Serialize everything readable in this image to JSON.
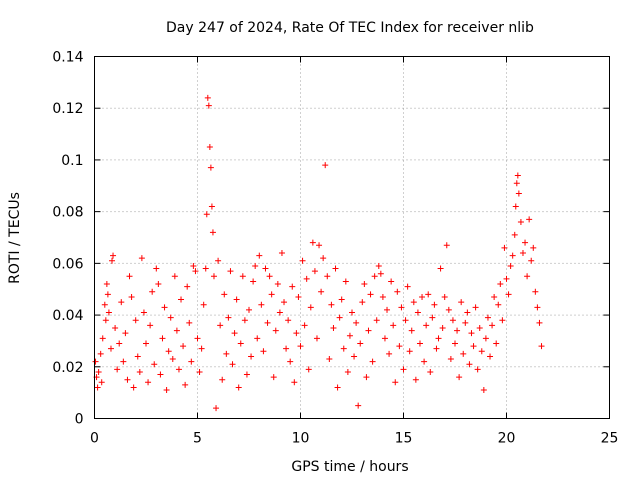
{
  "chart_data": {
    "type": "scatter",
    "title": "Day 247 of 2024, Rate Of TEC Index for receiver nlib",
    "xlabel": "GPS time / hours",
    "ylabel": "ROTI / TECUs",
    "xlim": [
      0,
      25
    ],
    "ylim": [
      0,
      0.14
    ],
    "xticks": [
      0,
      5,
      10,
      15,
      20,
      25
    ],
    "xtick_labels": [
      "0",
      "5",
      "10",
      "15",
      "20",
      "25"
    ],
    "yticks": [
      0,
      0.02,
      0.04,
      0.06,
      0.08,
      0.1,
      0.12,
      0.14
    ],
    "ytick_labels": [
      "0",
      "0.02",
      "0.04",
      "0.06",
      "0.08",
      "0.1",
      "0.12",
      "0.14"
    ],
    "grid": true,
    "marker": "plus",
    "color": "#ff0000",
    "points": [
      [
        0.05,
        0.022
      ],
      [
        0.1,
        0.016
      ],
      [
        0.15,
        0.012
      ],
      [
        0.2,
        0.018
      ],
      [
        0.3,
        0.025
      ],
      [
        0.35,
        0.014
      ],
      [
        0.4,
        0.031
      ],
      [
        0.5,
        0.044
      ],
      [
        0.55,
        0.038
      ],
      [
        0.6,
        0.052
      ],
      [
        0.65,
        0.048
      ],
      [
        0.7,
        0.041
      ],
      [
        0.8,
        0.027
      ],
      [
        0.85,
        0.061
      ],
      [
        0.9,
        0.063
      ],
      [
        1.0,
        0.035
      ],
      [
        1.1,
        0.019
      ],
      [
        1.2,
        0.029
      ],
      [
        1.3,
        0.045
      ],
      [
        1.4,
        0.022
      ],
      [
        1.5,
        0.033
      ],
      [
        1.6,
        0.015
      ],
      [
        1.7,
        0.055
      ],
      [
        1.8,
        0.047
      ],
      [
        1.9,
        0.012
      ],
      [
        2.0,
        0.038
      ],
      [
        2.1,
        0.024
      ],
      [
        2.2,
        0.018
      ],
      [
        2.3,
        0.062
      ],
      [
        2.4,
        0.041
      ],
      [
        2.5,
        0.029
      ],
      [
        2.6,
        0.014
      ],
      [
        2.7,
        0.036
      ],
      [
        2.8,
        0.049
      ],
      [
        2.9,
        0.021
      ],
      [
        3.0,
        0.058
      ],
      [
        3.1,
        0.052
      ],
      [
        3.2,
        0.017
      ],
      [
        3.3,
        0.031
      ],
      [
        3.4,
        0.043
      ],
      [
        3.5,
        0.011
      ],
      [
        3.6,
        0.026
      ],
      [
        3.7,
        0.039
      ],
      [
        3.8,
        0.023
      ],
      [
        3.9,
        0.055
      ],
      [
        4.0,
        0.034
      ],
      [
        4.1,
        0.019
      ],
      [
        4.2,
        0.046
      ],
      [
        4.3,
        0.028
      ],
      [
        4.4,
        0.013
      ],
      [
        4.5,
        0.051
      ],
      [
        4.6,
        0.037
      ],
      [
        4.7,
        0.022
      ],
      [
        4.8,
        0.059
      ],
      [
        4.9,
        0.057
      ],
      [
        5.0,
        0.031
      ],
      [
        5.1,
        0.018
      ],
      [
        5.2,
        0.027
      ],
      [
        5.3,
        0.044
      ],
      [
        5.4,
        0.058
      ],
      [
        5.45,
        0.079
      ],
      [
        5.5,
        0.124
      ],
      [
        5.55,
        0.121
      ],
      [
        5.6,
        0.105
      ],
      [
        5.65,
        0.097
      ],
      [
        5.7,
        0.082
      ],
      [
        5.75,
        0.072
      ],
      [
        5.8,
        0.055
      ],
      [
        5.9,
        0.004
      ],
      [
        6.0,
        0.061
      ],
      [
        6.1,
        0.036
      ],
      [
        6.2,
        0.015
      ],
      [
        6.3,
        0.048
      ],
      [
        6.4,
        0.025
      ],
      [
        6.5,
        0.039
      ],
      [
        6.6,
        0.057
      ],
      [
        6.7,
        0.021
      ],
      [
        6.8,
        0.033
      ],
      [
        6.9,
        0.046
      ],
      [
        7.0,
        0.012
      ],
      [
        7.1,
        0.029
      ],
      [
        7.2,
        0.055
      ],
      [
        7.3,
        0.038
      ],
      [
        7.4,
        0.017
      ],
      [
        7.5,
        0.042
      ],
      [
        7.6,
        0.024
      ],
      [
        7.7,
        0.053
      ],
      [
        7.8,
        0.059
      ],
      [
        7.9,
        0.031
      ],
      [
        8.0,
        0.063
      ],
      [
        8.1,
        0.044
      ],
      [
        8.2,
        0.026
      ],
      [
        8.3,
        0.058
      ],
      [
        8.4,
        0.037
      ],
      [
        8.5,
        0.055
      ],
      [
        8.6,
        0.048
      ],
      [
        8.7,
        0.016
      ],
      [
        8.8,
        0.034
      ],
      [
        8.9,
        0.052
      ],
      [
        9.0,
        0.041
      ],
      [
        9.1,
        0.064
      ],
      [
        9.2,
        0.045
      ],
      [
        9.3,
        0.027
      ],
      [
        9.4,
        0.038
      ],
      [
        9.5,
        0.022
      ],
      [
        9.6,
        0.051
      ],
      [
        9.7,
        0.014
      ],
      [
        9.8,
        0.033
      ],
      [
        9.9,
        0.047
      ],
      [
        10.0,
        0.028
      ],
      [
        10.1,
        0.061
      ],
      [
        10.2,
        0.036
      ],
      [
        10.3,
        0.054
      ],
      [
        10.4,
        0.019
      ],
      [
        10.5,
        0.043
      ],
      [
        10.6,
        0.068
      ],
      [
        10.7,
        0.057
      ],
      [
        10.8,
        0.031
      ],
      [
        10.9,
        0.067
      ],
      [
        11.0,
        0.049
      ],
      [
        11.1,
        0.062
      ],
      [
        11.2,
        0.098
      ],
      [
        11.3,
        0.055
      ],
      [
        11.4,
        0.023
      ],
      [
        11.5,
        0.044
      ],
      [
        11.6,
        0.035
      ],
      [
        11.7,
        0.058
      ],
      [
        11.8,
        0.012
      ],
      [
        11.9,
        0.039
      ],
      [
        12.0,
        0.046
      ],
      [
        12.1,
        0.027
      ],
      [
        12.2,
        0.053
      ],
      [
        12.3,
        0.018
      ],
      [
        12.4,
        0.032
      ],
      [
        12.5,
        0.041
      ],
      [
        12.6,
        0.024
      ],
      [
        12.7,
        0.037
      ],
      [
        12.8,
        0.005
      ],
      [
        12.9,
        0.029
      ],
      [
        13.0,
        0.045
      ],
      [
        13.1,
        0.052
      ],
      [
        13.2,
        0.016
      ],
      [
        13.3,
        0.034
      ],
      [
        13.4,
        0.048
      ],
      [
        13.5,
        0.022
      ],
      [
        13.6,
        0.055
      ],
      [
        13.7,
        0.038
      ],
      [
        13.8,
        0.059
      ],
      [
        13.9,
        0.056
      ],
      [
        14.0,
        0.047
      ],
      [
        14.1,
        0.031
      ],
      [
        14.2,
        0.042
      ],
      [
        14.3,
        0.025
      ],
      [
        14.4,
        0.053
      ],
      [
        14.5,
        0.036
      ],
      [
        14.6,
        0.014
      ],
      [
        14.7,
        0.049
      ],
      [
        14.8,
        0.028
      ],
      [
        14.9,
        0.043
      ],
      [
        15.0,
        0.019
      ],
      [
        15.1,
        0.038
      ],
      [
        15.2,
        0.051
      ],
      [
        15.3,
        0.026
      ],
      [
        15.4,
        0.034
      ],
      [
        15.5,
        0.045
      ],
      [
        15.6,
        0.015
      ],
      [
        15.7,
        0.041
      ],
      [
        15.8,
        0.029
      ],
      [
        15.9,
        0.047
      ],
      [
        16.0,
        0.022
      ],
      [
        16.1,
        0.036
      ],
      [
        16.2,
        0.048
      ],
      [
        16.3,
        0.018
      ],
      [
        16.4,
        0.039
      ],
      [
        16.5,
        0.044
      ],
      [
        16.6,
        0.027
      ],
      [
        16.7,
        0.031
      ],
      [
        16.8,
        0.058
      ],
      [
        16.9,
        0.035
      ],
      [
        17.0,
        0.047
      ],
      [
        17.1,
        0.067
      ],
      [
        17.2,
        0.042
      ],
      [
        17.3,
        0.023
      ],
      [
        17.4,
        0.038
      ],
      [
        17.5,
        0.029
      ],
      [
        17.6,
        0.034
      ],
      [
        17.7,
        0.016
      ],
      [
        17.8,
        0.045
      ],
      [
        17.9,
        0.025
      ],
      [
        18.0,
        0.037
      ],
      [
        18.1,
        0.041
      ],
      [
        18.2,
        0.021
      ],
      [
        18.3,
        0.033
      ],
      [
        18.4,
        0.028
      ],
      [
        18.5,
        0.043
      ],
      [
        18.6,
        0.019
      ],
      [
        18.7,
        0.035
      ],
      [
        18.8,
        0.026
      ],
      [
        18.9,
        0.011
      ],
      [
        19.0,
        0.031
      ],
      [
        19.1,
        0.039
      ],
      [
        19.2,
        0.024
      ],
      [
        19.3,
        0.036
      ],
      [
        19.4,
        0.047
      ],
      [
        19.5,
        0.029
      ],
      [
        19.6,
        0.044
      ],
      [
        19.7,
        0.052
      ],
      [
        19.8,
        0.038
      ],
      [
        19.9,
        0.066
      ],
      [
        20.0,
        0.054
      ],
      [
        20.1,
        0.048
      ],
      [
        20.2,
        0.059
      ],
      [
        20.3,
        0.063
      ],
      [
        20.4,
        0.071
      ],
      [
        20.45,
        0.082
      ],
      [
        20.5,
        0.091
      ],
      [
        20.55,
        0.094
      ],
      [
        20.6,
        0.087
      ],
      [
        20.7,
        0.076
      ],
      [
        20.8,
        0.064
      ],
      [
        20.9,
        0.068
      ],
      [
        21.0,
        0.055
      ],
      [
        21.1,
        0.077
      ],
      [
        21.2,
        0.061
      ],
      [
        21.3,
        0.066
      ],
      [
        21.4,
        0.049
      ],
      [
        21.5,
        0.043
      ],
      [
        21.6,
        0.037
      ],
      [
        21.7,
        0.028
      ]
    ]
  }
}
